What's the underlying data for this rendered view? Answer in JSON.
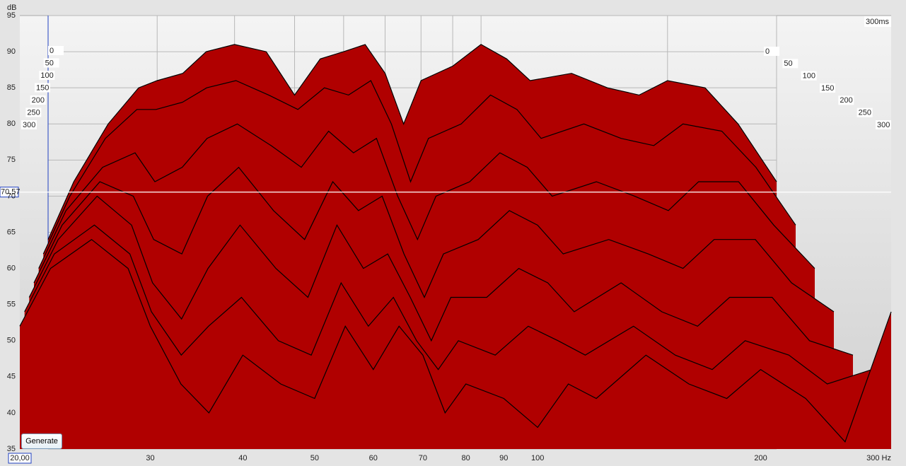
{
  "chart_data": {
    "type": "waterfall",
    "y_label": "dB",
    "x": [
      20,
      22,
      25,
      28,
      30,
      33,
      36,
      40,
      45,
      50,
      55,
      60,
      65,
      70,
      75,
      80,
      90,
      100,
      110,
      120,
      140,
      160,
      180,
      200,
      230,
      260,
      300
    ],
    "series": [
      {
        "name": "0",
        "color": "#b00000",
        "values": [
          64,
          72,
          80,
          85,
          86,
          87,
          90,
          91,
          90,
          84,
          89,
          90,
          91,
          87,
          80,
          86,
          88,
          91,
          89,
          86,
          87,
          85,
          84,
          86,
          85,
          80,
          72
        ]
      },
      {
        "name": "50",
        "color": "#b00000",
        "values": [
          62,
          70,
          78,
          82,
          82,
          83,
          85,
          86,
          84,
          82,
          85,
          84,
          86,
          80,
          72,
          78,
          80,
          84,
          82,
          78,
          80,
          78,
          77,
          80,
          79,
          74,
          66
        ]
      },
      {
        "name": "100",
        "color": "#b00000",
        "values": [
          60,
          68,
          74,
          76,
          72,
          74,
          78,
          80,
          77,
          74,
          79,
          76,
          78,
          70,
          64,
          70,
          72,
          76,
          74,
          70,
          72,
          70,
          68,
          72,
          72,
          66,
          60
        ]
      },
      {
        "name": "150",
        "color": "#b00000",
        "values": [
          58,
          66,
          72,
          70,
          64,
          62,
          70,
          74,
          68,
          64,
          72,
          68,
          70,
          62,
          56,
          62,
          64,
          68,
          66,
          62,
          64,
          62,
          60,
          64,
          64,
          58,
          54
        ]
      },
      {
        "name": "200",
        "color": "#b00000",
        "values": [
          56,
          64,
          70,
          66,
          58,
          53,
          60,
          66,
          60,
          56,
          66,
          60,
          62,
          56,
          50,
          56,
          56,
          60,
          58,
          54,
          58,
          54,
          52,
          56,
          56,
          50,
          48
        ]
      },
      {
        "name": "250",
        "color": "#b00000",
        "values": [
          54,
          62,
          66,
          62,
          54,
          48,
          52,
          56,
          50,
          48,
          58,
          52,
          56,
          50,
          46,
          50,
          48,
          52,
          50,
          48,
          52,
          48,
          46,
          50,
          48,
          44,
          46
        ]
      },
      {
        "name": "300",
        "color": "#b00000",
        "values": [
          52,
          60,
          64,
          60,
          52,
          44,
          40,
          48,
          44,
          42,
          52,
          46,
          52,
          48,
          40,
          44,
          42,
          38,
          44,
          42,
          48,
          44,
          42,
          46,
          42,
          36,
          54
        ]
      }
    ],
    "series_times": [
      0,
      50,
      100,
      150,
      200,
      250,
      300
    ],
    "xlim": [
      20,
      300
    ],
    "log_x": true,
    "xticks": [
      {
        "value": 20,
        "label": "20,00"
      },
      30,
      40,
      50,
      60,
      70,
      80,
      90,
      100,
      200,
      {
        "value": 300,
        "label": "300 Hz"
      }
    ],
    "ylim": [
      35,
      95
    ],
    "yticks": [
      35,
      40,
      45,
      50,
      55,
      60,
      65,
      70,
      75,
      80,
      85,
      90,
      95
    ],
    "zlim": [
      0,
      300
    ],
    "zticks": [
      0,
      50,
      100,
      150,
      200,
      250,
      300
    ],
    "time_end": {
      "value": 300,
      "label": "300ms"
    },
    "cursor": {
      "value": 70.57,
      "label": "70,57"
    },
    "grid": true,
    "button": "Generate"
  }
}
